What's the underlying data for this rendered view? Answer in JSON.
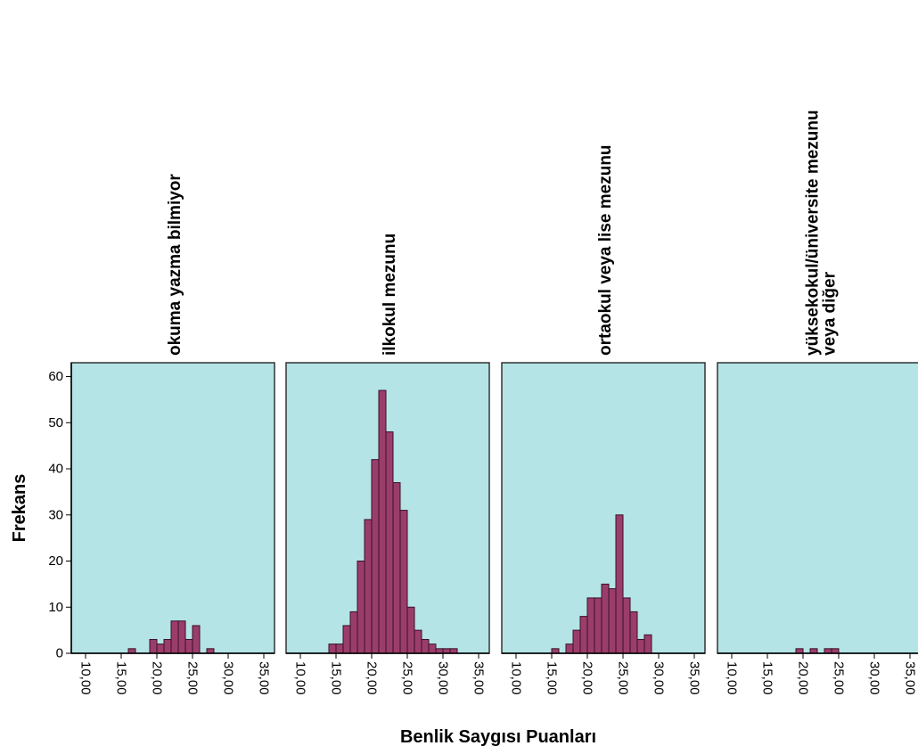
{
  "chart_data": {
    "type": "bar",
    "xlabel": "Benlik Saygısı Puanları",
    "ylabel": "Frekans",
    "ylim": [
      0,
      63
    ],
    "xlim": [
      8,
      36.5
    ],
    "y_ticks": [
      "0",
      "10",
      "20",
      "30",
      "40",
      "50",
      "60"
    ],
    "x_ticks": [
      "10,00",
      "15,00",
      "20,00",
      "25,00",
      "30,00",
      "35,00"
    ],
    "bin_width": 1,
    "grid": false,
    "colors": {
      "panel_bg": "#b4e4e6",
      "bar_fill": "#9b3d6b",
      "bar_stroke": "#3a1027",
      "frame": "#333333"
    },
    "panels": [
      {
        "title": [
          "okuma yazma bilmiyor"
        ],
        "bins": [
          [
            16,
            1
          ],
          [
            19,
            3
          ],
          [
            20,
            2
          ],
          [
            21,
            3
          ],
          [
            22,
            7
          ],
          [
            23,
            7
          ],
          [
            24,
            3
          ],
          [
            25,
            6
          ],
          [
            27,
            1
          ]
        ]
      },
      {
        "title": [
          "ilkokul mezunu"
        ],
        "bins": [
          [
            14,
            2
          ],
          [
            15,
            2
          ],
          [
            16,
            6
          ],
          [
            17,
            9
          ],
          [
            18,
            20
          ],
          [
            19,
            29
          ],
          [
            20,
            42
          ],
          [
            21,
            57
          ],
          [
            22,
            48
          ],
          [
            23,
            37
          ],
          [
            24,
            31
          ],
          [
            25,
            10
          ],
          [
            26,
            5
          ],
          [
            27,
            3
          ],
          [
            28,
            2
          ],
          [
            29,
            1
          ],
          [
            30,
            1
          ],
          [
            31,
            1
          ]
        ]
      },
      {
        "title": [
          "ortaokul veya lise mezunu"
        ],
        "bins": [
          [
            15,
            1
          ],
          [
            17,
            2
          ],
          [
            18,
            5
          ],
          [
            19,
            8
          ],
          [
            20,
            12
          ],
          [
            21,
            12
          ],
          [
            22,
            15
          ],
          [
            23,
            14
          ],
          [
            24,
            30
          ],
          [
            25,
            12
          ],
          [
            26,
            9
          ],
          [
            27,
            3
          ],
          [
            28,
            4
          ]
        ]
      },
      {
        "title": [
          "yüksekokul/üniversite mezunu",
          "veya diğer"
        ],
        "bins": [
          [
            19,
            1
          ],
          [
            21,
            1
          ],
          [
            23,
            1
          ],
          [
            24,
            1
          ]
        ]
      }
    ]
  }
}
